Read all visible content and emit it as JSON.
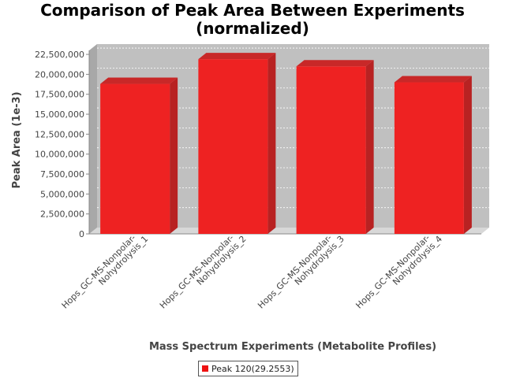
{
  "chart_data": {
    "type": "bar",
    "title": "Comparison of Peak Area Between Experiments (normalized)",
    "title_lines": [
      "Comparison of Peak Area Between Experiments",
      "(normalized)"
    ],
    "xlabel": "Mass Spectrum Experiments (Metabolite Profiles)",
    "ylabel": "Peak Area (1e-3)",
    "categories": [
      "Hops_GC-MS-Nonpolar-Nohydrolysis_1",
      "Hops_GC-MS-Nonpolar-Nohydrolysis_2",
      "Hops_GC-MS-Nonpolar-Nohydrolysis_3",
      "Hops_GC-MS-Nonpolar-Nohydrolysis_4"
    ],
    "category_lines": [
      [
        "Hops_GC-MS-Nonpolar-",
        "Nohydrolysis_1"
      ],
      [
        "Hops_GC-MS-Nonpolar-",
        "Nohydrolysis_2"
      ],
      [
        "Hops_GC-MS-Nonpolar-",
        "Nohydrolysis_3"
      ],
      [
        "Hops_GC-MS-Nonpolar-",
        "Nohydrolysis_4"
      ]
    ],
    "series": [
      {
        "name": "Peak 120(29.2553)",
        "values": [
          18800000,
          21900000,
          21000000,
          19000000
        ]
      }
    ],
    "yticks": [
      "0",
      "2,500,000",
      "5,000,000",
      "7,500,000",
      "10,000,000",
      "12,500,000",
      "15,000,000",
      "17,500,000",
      "20,000,000",
      "22,500,000"
    ],
    "ylim": [
      0,
      23000000
    ],
    "grid": true,
    "legend_position": "bottom",
    "colors": {
      "bar": "#ee2222",
      "bar_side": "#b82222",
      "bar_top": "#c82828",
      "plot_bg": "#c0c0c0",
      "plot_wall": "#a8a8a8"
    }
  }
}
